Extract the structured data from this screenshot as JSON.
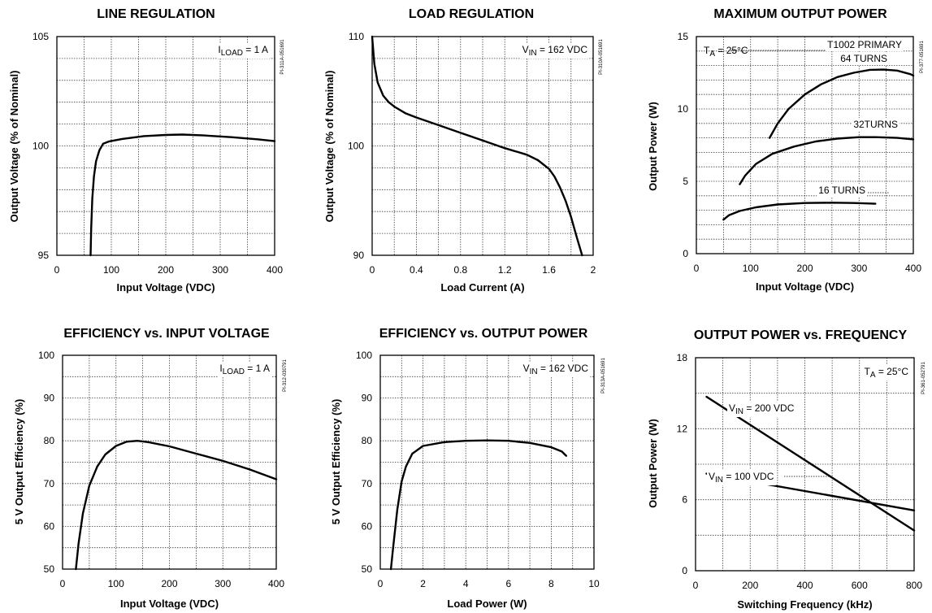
{
  "chart_data": [
    {
      "type": "line",
      "title": "LINE REGULATION",
      "xlabel": "Input Voltage (VDC)",
      "ylabel": "Output Voltage (% of Nominal)",
      "xlim": [
        0,
        400
      ],
      "ylim": [
        95,
        105
      ],
      "x_ticks": [
        "0",
        "100",
        "200",
        "300",
        "400"
      ],
      "y_ticks": [
        "95",
        "100",
        "105"
      ],
      "annotations": [
        {
          "main": "I",
          "sub": "LOAD",
          "rest": " = 1 A"
        }
      ],
      "part_number": "PI-311A-051691",
      "series": [
        {
          "x": [
            62,
            63,
            65,
            68,
            72,
            78,
            85,
            95,
            120,
            160,
            200,
            230,
            270,
            320,
            370,
            400
          ],
          "y": [
            95,
            96.2,
            97.6,
            98.6,
            99.3,
            99.8,
            100.1,
            100.2,
            100.32,
            100.45,
            100.5,
            100.52,
            100.48,
            100.4,
            100.3,
            100.22
          ]
        }
      ]
    },
    {
      "type": "line",
      "title": "LOAD REGULATION",
      "xlabel": "Load Current (A)",
      "ylabel": "Output Voltage (% of Nominal)",
      "xlim": [
        0,
        2
      ],
      "ylim": [
        90,
        110
      ],
      "x_ticks": [
        "0",
        "0.4",
        "0.8",
        "1.2",
        "1.6",
        "2"
      ],
      "y_ticks": [
        "90",
        "100",
        "110"
      ],
      "annotations": [
        {
          "main": "V",
          "sub": "IN",
          "rest": " = 162 VDC"
        }
      ],
      "part_number": "PI-310A-051691",
      "series": [
        {
          "x": [
            0,
            0.02,
            0.05,
            0.1,
            0.15,
            0.2,
            0.3,
            0.4,
            0.6,
            0.8,
            1.0,
            1.2,
            1.4,
            1.5,
            1.6,
            1.65,
            1.7,
            1.75,
            1.8,
            1.85,
            1.9
          ],
          "y": [
            110,
            107.5,
            105.8,
            104.6,
            104.0,
            103.6,
            103.0,
            102.6,
            101.9,
            101.2,
            100.5,
            99.8,
            99.2,
            98.7,
            97.9,
            97.2,
            96.2,
            95.0,
            93.5,
            91.7,
            90
          ]
        }
      ]
    },
    {
      "type": "line",
      "title": "MAXIMUM OUTPUT POWER",
      "xlabel": "Input Voltage (VDC)",
      "ylabel": "Output Power (W)",
      "xlim": [
        0,
        400
      ],
      "ylim": [
        0,
        15
      ],
      "x_ticks": [
        "0",
        "100",
        "200",
        "300",
        "400"
      ],
      "y_ticks": [
        "0",
        "5",
        "10",
        "15"
      ],
      "annotations": [
        {
          "main": "T",
          "sub": "A",
          "rest": " = 25°C"
        }
      ],
      "part_number": "PI-377-051691",
      "series": [
        {
          "name": "T1002 PRIMARY 64 TURNS",
          "x": [
            135,
            150,
            170,
            200,
            230,
            260,
            290,
            320,
            345,
            370,
            395,
            400
          ],
          "y": [
            8.0,
            9.0,
            10.0,
            11.0,
            11.7,
            12.2,
            12.5,
            12.7,
            12.72,
            12.65,
            12.4,
            12.3
          ]
        },
        {
          "name": "32TURNS",
          "x": [
            80,
            90,
            110,
            140,
            180,
            220,
            260,
            300,
            330,
            370,
            400
          ],
          "y": [
            4.8,
            5.4,
            6.2,
            6.9,
            7.4,
            7.75,
            7.95,
            8.05,
            8.05,
            8.0,
            7.9
          ]
        },
        {
          "name": "16 TURNS",
          "x": [
            50,
            60,
            80,
            110,
            150,
            200,
            250,
            290,
            330
          ],
          "y": [
            2.35,
            2.65,
            2.95,
            3.2,
            3.4,
            3.5,
            3.52,
            3.5,
            3.45
          ]
        }
      ]
    },
    {
      "type": "line",
      "title": "EFFICIENCY vs. INPUT VOLTAGE",
      "xlabel": "Input Voltage (VDC)",
      "ylabel": "5 V Output Efficiency (%)",
      "xlim": [
        0,
        400
      ],
      "ylim": [
        50,
        100
      ],
      "x_ticks": [
        "0",
        "100",
        "200",
        "300",
        "400"
      ],
      "y_ticks": [
        "50",
        "60",
        "70",
        "80",
        "90",
        "100"
      ],
      "annotations": [
        {
          "main": "I",
          "sub": "LOAD",
          "rest": " = 1 A"
        }
      ],
      "part_number": "PI-312-030791",
      "series": [
        {
          "x": [
            25,
            30,
            38,
            50,
            65,
            80,
            100,
            120,
            140,
            160,
            200,
            250,
            300,
            350,
            400
          ],
          "y": [
            50,
            56,
            63,
            69.5,
            74,
            76.8,
            78.8,
            79.8,
            80.0,
            79.7,
            78.7,
            77.0,
            75.3,
            73.3,
            71
          ]
        }
      ]
    },
    {
      "type": "line",
      "title": "EFFICIENCY vs. OUTPUT POWER",
      "xlabel": "Load Power (W)",
      "ylabel": "5 V Output Efficiency (%)",
      "xlim": [
        0,
        10
      ],
      "ylim": [
        50,
        100
      ],
      "x_ticks": [
        "0",
        "2",
        "4",
        "6",
        "8",
        "10"
      ],
      "y_ticks": [
        "50",
        "60",
        "70",
        "80",
        "90",
        "100"
      ],
      "annotations": [
        {
          "main": "V",
          "sub": "IN",
          "rest": " = 162 VDC"
        }
      ],
      "part_number": "PI-313A-051691",
      "series": [
        {
          "x": [
            0.5,
            0.6,
            0.8,
            1.0,
            1.2,
            1.5,
            2.0,
            3.0,
            4.0,
            5.0,
            6.0,
            7.0,
            8.0,
            8.5,
            8.7
          ],
          "y": [
            50,
            55,
            64,
            70.5,
            74,
            77,
            78.8,
            79.7,
            80.0,
            80.1,
            80.0,
            79.5,
            78.5,
            77.5,
            76.5
          ]
        }
      ]
    },
    {
      "type": "line",
      "title": "OUTPUT POWER vs. FREQUENCY",
      "xlabel": "Switching Frequency (kHz)",
      "ylabel": "Output Power (W)",
      "xlim": [
        0,
        800
      ],
      "ylim": [
        0,
        18
      ],
      "x_ticks": [
        "0",
        "200",
        "400",
        "600",
        "800"
      ],
      "y_ticks": [
        "0",
        "6",
        "12",
        "18"
      ],
      "annotations": [
        {
          "main": "T",
          "sub": "A",
          "rest": " = 25°C"
        }
      ],
      "part_number": "PI-361-052791",
      "series": [
        {
          "name": "V IN = 200 VDC",
          "label": {
            "main": "V",
            "sub": "IN",
            "rest": " = 200 VDC"
          },
          "x": [
            40,
            800
          ],
          "y": [
            14.7,
            3.4
          ]
        },
        {
          "name": "V IN = 100 VDC",
          "label": {
            "main": "V",
            "sub": "IN",
            "rest": " = 100 VDC"
          },
          "x": [
            40,
            800
          ],
          "y": [
            8.2,
            5.1
          ]
        }
      ]
    }
  ]
}
